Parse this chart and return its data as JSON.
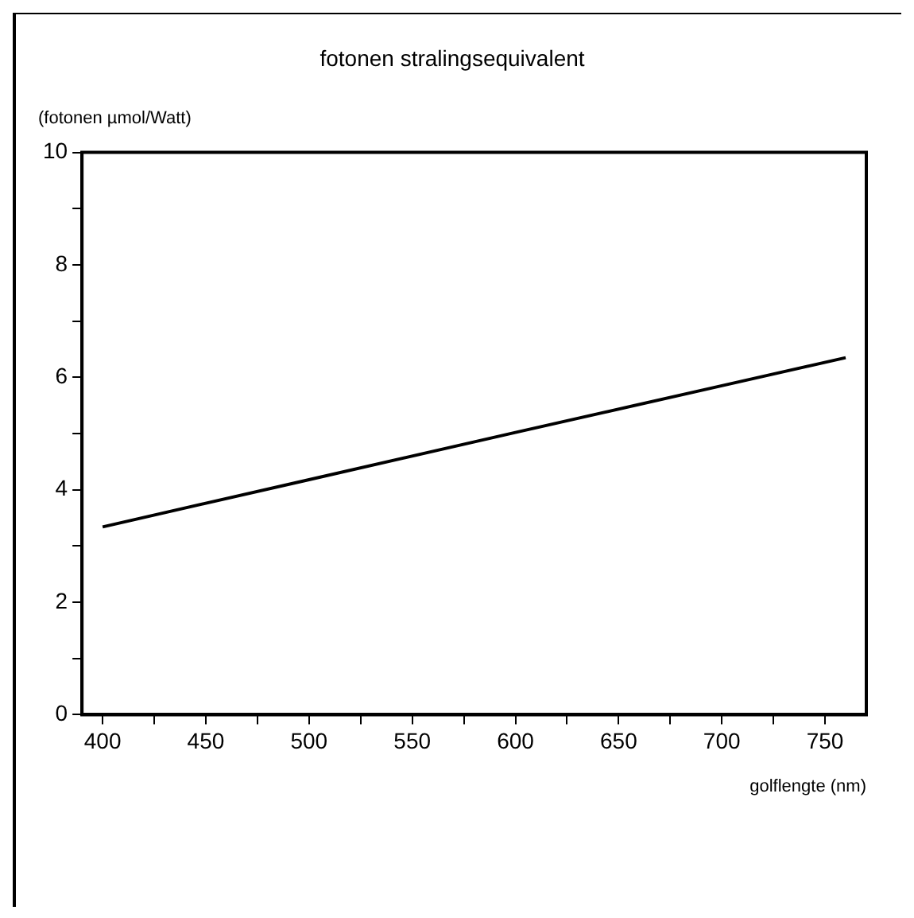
{
  "chart_data": {
    "type": "line",
    "title": "fotonen stralingsequivalent",
    "ylabel": "(fotonen µmol/Watt)",
    "xlabel": "golflengte (nm)",
    "series": [
      {
        "color": "#000000",
        "x": [
          400,
          500,
          600,
          700,
          760
        ],
        "values": [
          3.34,
          4.18,
          5.02,
          5.85,
          6.35
        ]
      }
    ],
    "xlim": [
      390,
      770
    ],
    "ylim": [
      0,
      10
    ],
    "xticks": [
      400,
      {
        "value": 425,
        "label": null
      },
      450,
      {
        "value": 475,
        "label": null
      },
      500,
      {
        "value": 525,
        "label": null
      },
      550,
      {
        "value": 575,
        "label": null
      },
      600,
      {
        "value": 625,
        "label": null
      },
      650,
      {
        "value": 675,
        "label": null
      },
      700,
      {
        "value": 725,
        "label": null
      },
      750
    ],
    "yticks": [
      0,
      {
        "value": 1,
        "label": null
      },
      2,
      {
        "value": 3,
        "label": null
      },
      4,
      {
        "value": 5,
        "label": null
      },
      6,
      {
        "value": 7,
        "label": null
      },
      8,
      {
        "value": 9,
        "label": null
      },
      10
    ],
    "grid": false,
    "legend": false,
    "marker": "none",
    "line_style": "solid"
  }
}
